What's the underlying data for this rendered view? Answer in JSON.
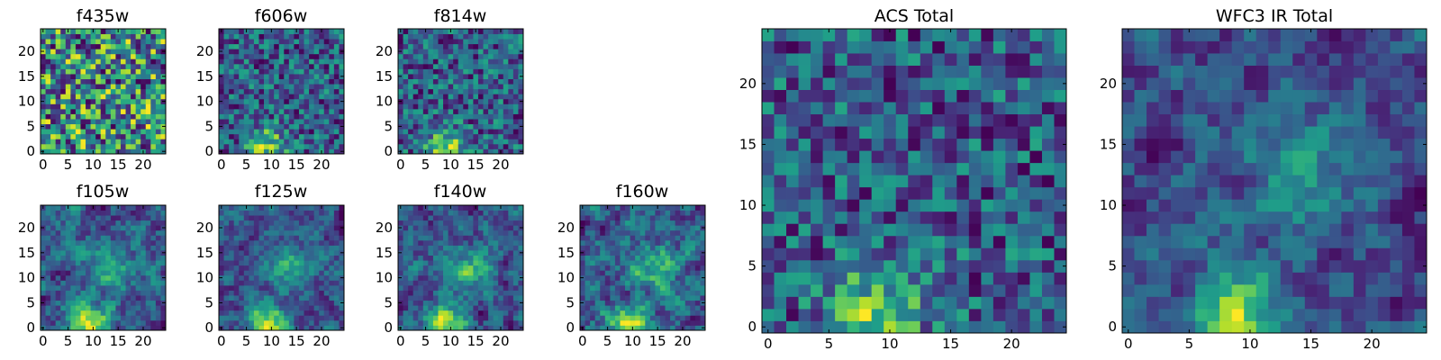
{
  "chart_data": [
    {
      "type": "heatmap",
      "title": "f435w",
      "xlim": [
        0,
        24
      ],
      "ylim": [
        0,
        24
      ],
      "grid_size": 25,
      "colormap": "viridis",
      "xticks": [
        0,
        5,
        10,
        15,
        20
      ],
      "yticks": [
        0,
        5,
        10,
        15,
        20
      ],
      "pattern": "noise",
      "seed": 11
    },
    {
      "type": "heatmap",
      "title": "f606w",
      "xlim": [
        0,
        24
      ],
      "ylim": [
        0,
        24
      ],
      "grid_size": 25,
      "colormap": "viridis",
      "xticks": [
        0,
        5,
        10,
        15,
        20
      ],
      "yticks": [
        0,
        5,
        10,
        15,
        20
      ],
      "pattern": "noise_source",
      "seed": 23
    },
    {
      "type": "heatmap",
      "title": "f814w",
      "xlim": [
        0,
        24
      ],
      "ylim": [
        0,
        24
      ],
      "grid_size": 25,
      "colormap": "viridis",
      "xticks": [
        0,
        5,
        10,
        15,
        20
      ],
      "yticks": [
        0,
        5,
        10,
        15,
        20
      ],
      "pattern": "noise_source",
      "seed": 37
    },
    {
      "type": "heatmap",
      "title": "f105w",
      "xlim": [
        0,
        24
      ],
      "ylim": [
        0,
        24
      ],
      "grid_size": 25,
      "colormap": "viridis",
      "xticks": [
        0,
        5,
        10,
        15,
        20
      ],
      "yticks": [
        0,
        5,
        10,
        15,
        20
      ],
      "pattern": "smooth",
      "seed": 41
    },
    {
      "type": "heatmap",
      "title": "f125w",
      "xlim": [
        0,
        24
      ],
      "ylim": [
        0,
        24
      ],
      "grid_size": 25,
      "colormap": "viridis",
      "xticks": [
        0,
        5,
        10,
        15,
        20
      ],
      "yticks": [
        0,
        5,
        10,
        15,
        20
      ],
      "pattern": "smooth",
      "seed": 53
    },
    {
      "type": "heatmap",
      "title": "f140w",
      "xlim": [
        0,
        24
      ],
      "ylim": [
        0,
        24
      ],
      "grid_size": 25,
      "colormap": "viridis",
      "xticks": [
        0,
        5,
        10,
        15,
        20
      ],
      "yticks": [
        0,
        5,
        10,
        15,
        20
      ],
      "pattern": "smooth",
      "seed": 67
    },
    {
      "type": "heatmap",
      "title": "f160w",
      "xlim": [
        0,
        24
      ],
      "ylim": [
        0,
        24
      ],
      "grid_size": 25,
      "colormap": "viridis",
      "xticks": [
        0,
        5,
        10,
        15,
        20
      ],
      "yticks": [
        0,
        5,
        10,
        15,
        20
      ],
      "pattern": "smooth",
      "seed": 79
    },
    {
      "type": "heatmap",
      "title": "ACS Total",
      "xlim": [
        0,
        24
      ],
      "ylim": [
        0,
        24
      ],
      "grid_size": 25,
      "colormap": "viridis",
      "xticks": [
        0,
        5,
        10,
        15,
        20
      ],
      "yticks": [
        0,
        5,
        10,
        15,
        20
      ],
      "pattern": "noise_source",
      "seed": 97
    },
    {
      "type": "heatmap",
      "title": "WFC3 IR Total",
      "xlim": [
        0,
        24
      ],
      "ylim": [
        0,
        24
      ],
      "grid_size": 25,
      "colormap": "viridis",
      "xticks": [
        0,
        5,
        10,
        15,
        20
      ],
      "yticks": [
        0,
        5,
        10,
        15,
        20
      ],
      "pattern": "smooth_source",
      "seed": 113
    }
  ]
}
